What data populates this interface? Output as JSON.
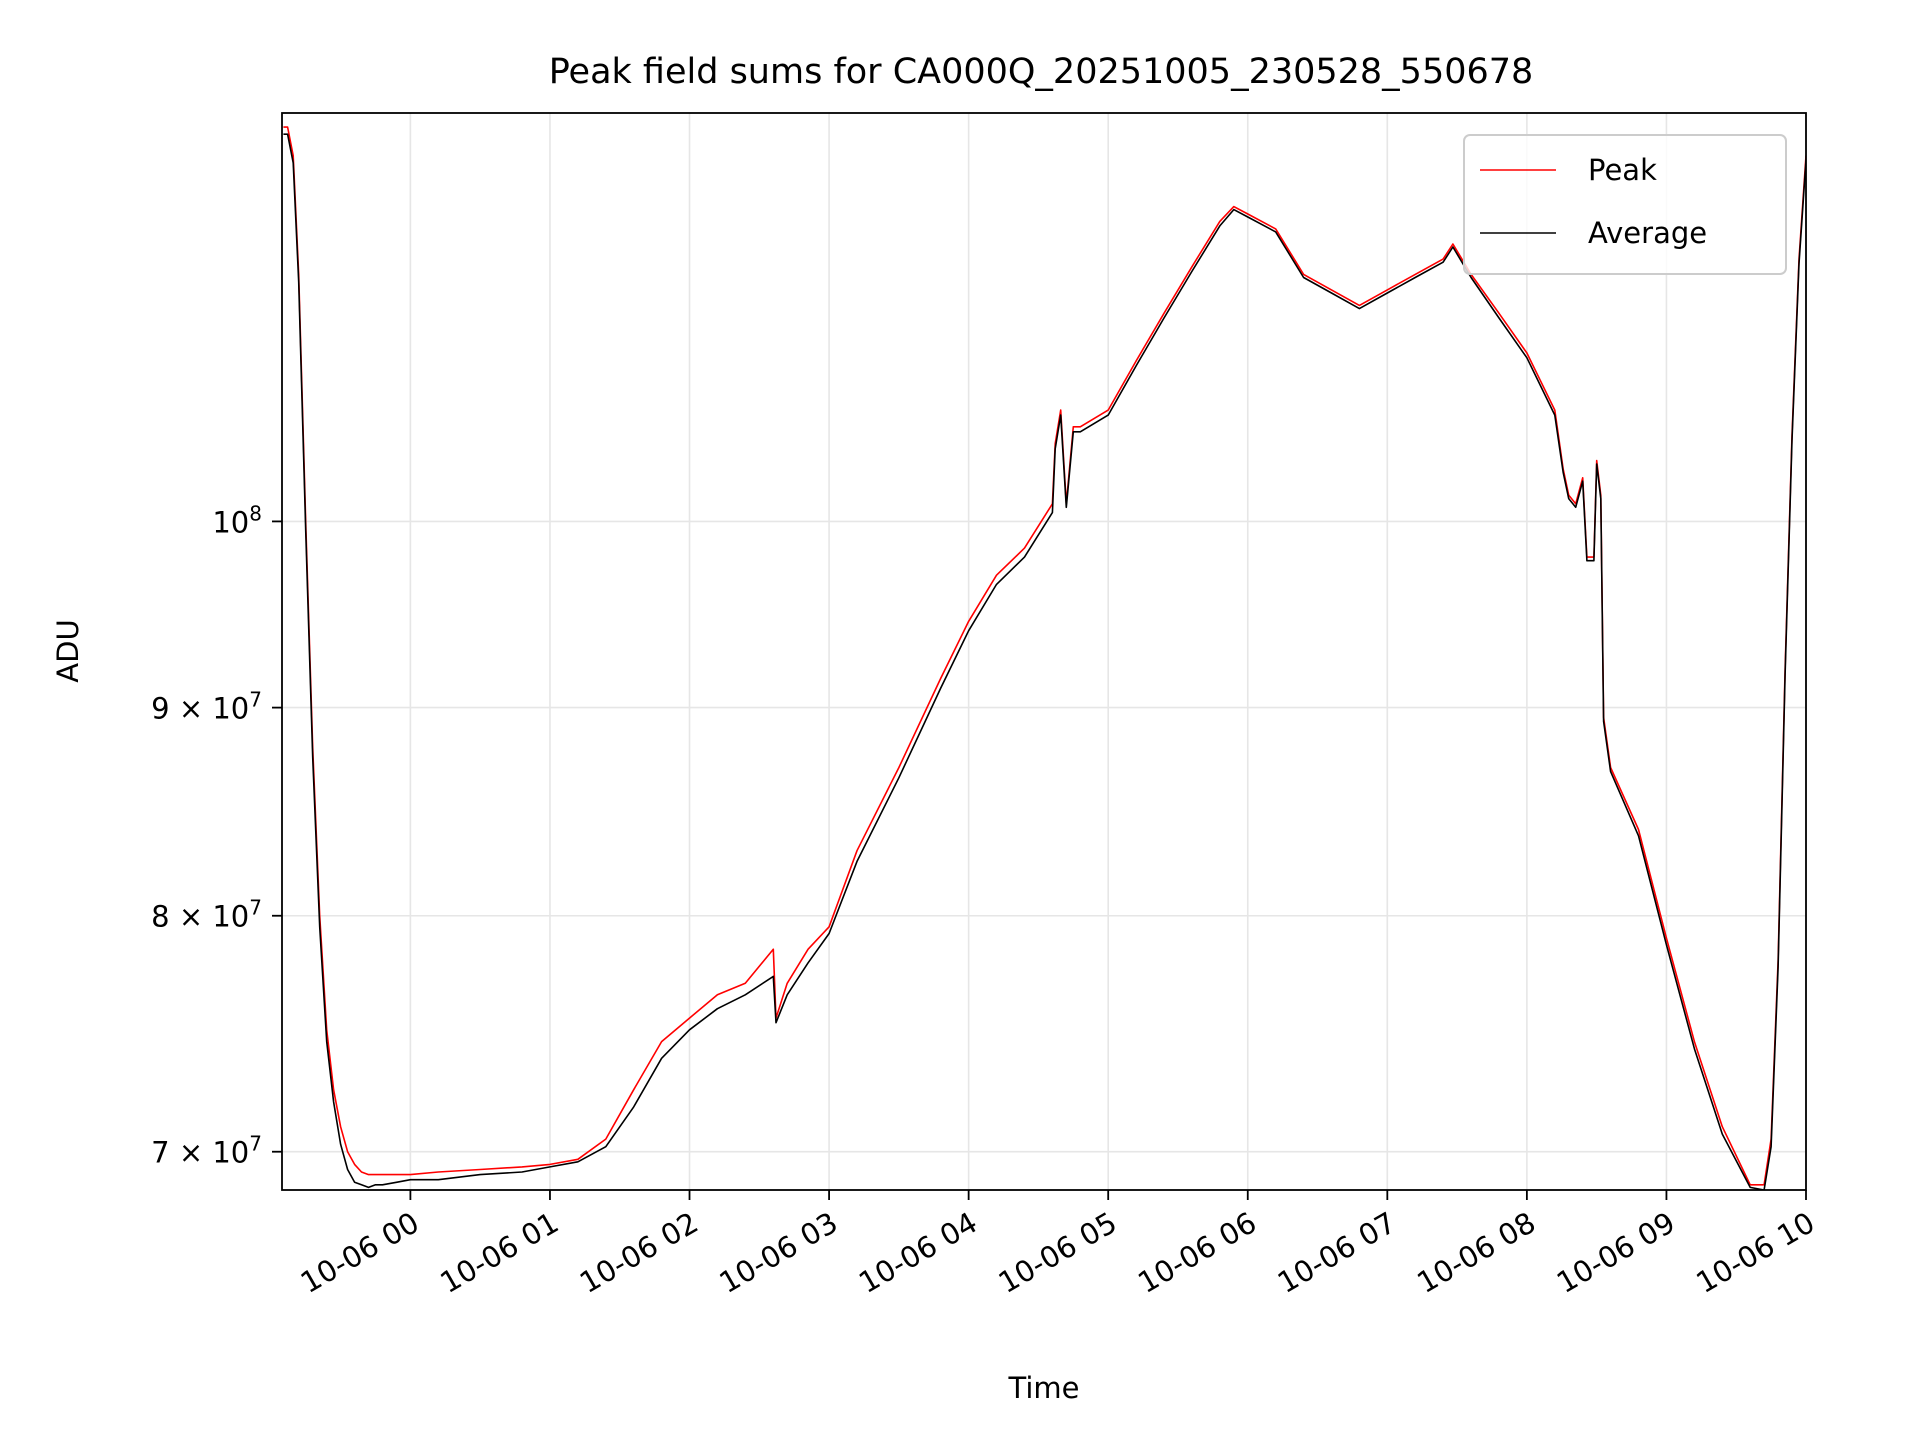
{
  "chart_data": {
    "type": "line",
    "title": "Peak field sums for CA000Q_20251005_230528_550678",
    "xlabel": "Time",
    "ylabel": "ADU",
    "yscale": "log",
    "grid": true,
    "legend_position": "top-right",
    "x_unit": "hours relative to 10-06 00:00",
    "xlim": [
      -0.92,
      10.0
    ],
    "ylim": [
      68500000,
      126000000
    ],
    "x_ticks": [
      {
        "value": 0,
        "label": "10-06 00"
      },
      {
        "value": 1,
        "label": "10-06 01"
      },
      {
        "value": 2,
        "label": "10-06 02"
      },
      {
        "value": 3,
        "label": "10-06 03"
      },
      {
        "value": 4,
        "label": "10-06 04"
      },
      {
        "value": 5,
        "label": "10-06 05"
      },
      {
        "value": 6,
        "label": "10-06 06"
      },
      {
        "value": 7,
        "label": "10-06 07"
      },
      {
        "value": 8,
        "label": "10-06 08"
      },
      {
        "value": 9,
        "label": "10-06 09"
      },
      {
        "value": 10,
        "label": "10-06 10"
      }
    ],
    "y_ticks": [
      {
        "value": 70000000,
        "label_mantissa": "7 × 10",
        "label_exp": "7"
      },
      {
        "value": 80000000,
        "label_mantissa": "8 × 10",
        "label_exp": "7"
      },
      {
        "value": 90000000,
        "label_mantissa": "9 × 10",
        "label_exp": "7"
      },
      {
        "value": 100000000,
        "label_mantissa": "10",
        "label_exp": "8"
      }
    ],
    "series": [
      {
        "name": "Peak",
        "color": "#ff0000",
        "x": [
          -0.91,
          -0.88,
          -0.84,
          -0.8,
          -0.75,
          -0.7,
          -0.65,
          -0.6,
          -0.55,
          -0.5,
          -0.45,
          -0.4,
          -0.35,
          -0.3,
          -0.25,
          -0.2,
          -0.1,
          0,
          0.2,
          0.5,
          0.8,
          1.0,
          1.2,
          1.4,
          1.6,
          1.8,
          2.0,
          2.2,
          2.4,
          2.6,
          2.62,
          2.7,
          2.85,
          3.0,
          3.2,
          3.5,
          3.8,
          4.0,
          4.2,
          4.4,
          4.6,
          4.62,
          4.66,
          4.7,
          4.75,
          4.8,
          5.0,
          5.2,
          5.4,
          5.6,
          5.8,
          5.9,
          6.0,
          6.2,
          6.4,
          6.6,
          6.8,
          7.0,
          7.2,
          7.4,
          7.47,
          7.6,
          7.8,
          8.0,
          8.2,
          8.26,
          8.3,
          8.35,
          8.4,
          8.43,
          8.48,
          8.5,
          8.53,
          8.55,
          8.6,
          8.8,
          9.0,
          9.2,
          9.4,
          9.6,
          9.7,
          9.75,
          9.8,
          9.85,
          9.9,
          9.95,
          10.0
        ],
        "values": [
          125000000,
          125000000,
          123000000,
          115000000,
          100000000,
          88000000,
          80000000,
          75000000,
          72500000,
          71000000,
          70000000,
          69500000,
          69200000,
          69100000,
          69100000,
          69100000,
          69100000,
          69100000,
          69200000,
          69300000,
          69400000,
          69500000,
          69700000,
          70500000,
          72500000,
          74500000,
          75500000,
          76500000,
          77000000,
          78500000,
          75500000,
          77000000,
          78500000,
          79500000,
          83000000,
          87000000,
          91500000,
          94500000,
          97000000,
          98500000,
          101000000,
          104500000,
          106500000,
          101000000,
          105500000,
          105500000,
          106500000,
          109500000,
          112500000,
          115500000,
          118500000,
          119500000,
          119000000,
          118000000,
          115000000,
          114000000,
          113000000,
          114000000,
          115000000,
          116000000,
          117000000,
          115000000,
          112500000,
          110000000,
          106500000,
          103000000,
          101500000,
          101000000,
          102500000,
          98000000,
          98000000,
          103500000,
          101500000,
          89500000,
          87000000,
          84000000,
          79000000,
          74500000,
          71000000,
          68700000,
          68700000,
          70500000,
          78000000,
          92000000,
          105000000,
          116000000,
          123000000
        ]
      },
      {
        "name": "Average",
        "color": "#000000",
        "x": [
          -0.91,
          -0.88,
          -0.84,
          -0.8,
          -0.75,
          -0.7,
          -0.65,
          -0.6,
          -0.55,
          -0.5,
          -0.45,
          -0.4,
          -0.35,
          -0.3,
          -0.25,
          -0.2,
          -0.1,
          0,
          0.2,
          0.5,
          0.8,
          1.0,
          1.2,
          1.4,
          1.6,
          1.8,
          2.0,
          2.2,
          2.4,
          2.6,
          2.62,
          2.7,
          2.85,
          3.0,
          3.2,
          3.5,
          3.8,
          4.0,
          4.2,
          4.4,
          4.6,
          4.62,
          4.66,
          4.7,
          4.75,
          4.8,
          5.0,
          5.2,
          5.4,
          5.6,
          5.8,
          5.9,
          6.0,
          6.2,
          6.4,
          6.6,
          6.8,
          7.0,
          7.2,
          7.4,
          7.47,
          7.6,
          7.8,
          8.0,
          8.2,
          8.26,
          8.3,
          8.35,
          8.4,
          8.43,
          8.48,
          8.5,
          8.53,
          8.55,
          8.6,
          8.8,
          9.0,
          9.2,
          9.4,
          9.6,
          9.7,
          9.75,
          9.8,
          9.85,
          9.9,
          9.95,
          10.0
        ],
        "values": [
          124500000,
          124500000,
          122500000,
          114500000,
          99500000,
          87500000,
          79500000,
          74500000,
          72000000,
          70300000,
          69300000,
          68800000,
          68700000,
          68600000,
          68700000,
          68700000,
          68800000,
          68900000,
          68900000,
          69100000,
          69200000,
          69400000,
          69600000,
          70200000,
          71800000,
          73800000,
          75000000,
          75900000,
          76500000,
          77300000,
          75300000,
          76500000,
          77900000,
          79200000,
          82500000,
          86500000,
          91000000,
          94000000,
          96500000,
          98000000,
          100500000,
          104200000,
          106200000,
          100800000,
          105200000,
          105200000,
          106200000,
          109200000,
          112200000,
          115200000,
          118200000,
          119300000,
          118800000,
          117800000,
          114800000,
          113800000,
          112800000,
          113800000,
          114800000,
          115800000,
          116800000,
          114800000,
          112200000,
          109700000,
          106200000,
          102800000,
          101300000,
          100800000,
          102300000,
          97800000,
          97800000,
          103300000,
          101300000,
          89300000,
          86800000,
          83700000,
          78700000,
          74200000,
          70700000,
          68600000,
          68500000,
          70200000,
          77700000,
          91700000,
          104700000,
          115700000,
          122700000
        ]
      }
    ]
  }
}
